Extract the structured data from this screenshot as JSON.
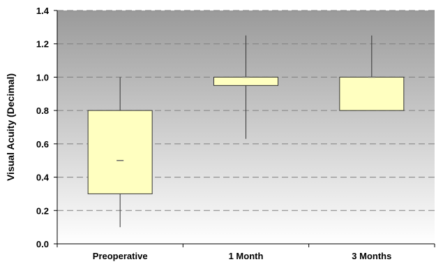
{
  "chart_data": {
    "type": "box",
    "ylabel": "Visual Acuity (Decimal)",
    "ylim": [
      0,
      1.4
    ],
    "yticks": [
      "0.0",
      "0.2",
      "0.4",
      "0.6",
      "0.8",
      "1.0",
      "1.2",
      "1.4"
    ],
    "categories": [
      "Preoperative",
      "1 Month",
      "3 Months"
    ],
    "boxes": [
      {
        "category": "Preoperative",
        "min": 0.1,
        "q1": 0.3,
        "median": 0.5,
        "q3": 0.8,
        "max": 1.0
      },
      {
        "category": "1 Month",
        "min": 0.63,
        "q1": 0.95,
        "median": 1.0,
        "q3": 1.0,
        "max": 1.25
      },
      {
        "category": "3 Months",
        "min": 0.8,
        "q1": 0.8,
        "median": 1.0,
        "q3": 1.0,
        "max": 1.25
      }
    ],
    "grid": true,
    "colors": {
      "box_fill": "#ffffc0",
      "plot_bg_top": "#9a9a9a",
      "plot_bg_bottom": "#ffffff",
      "gridline": "#808080"
    }
  }
}
